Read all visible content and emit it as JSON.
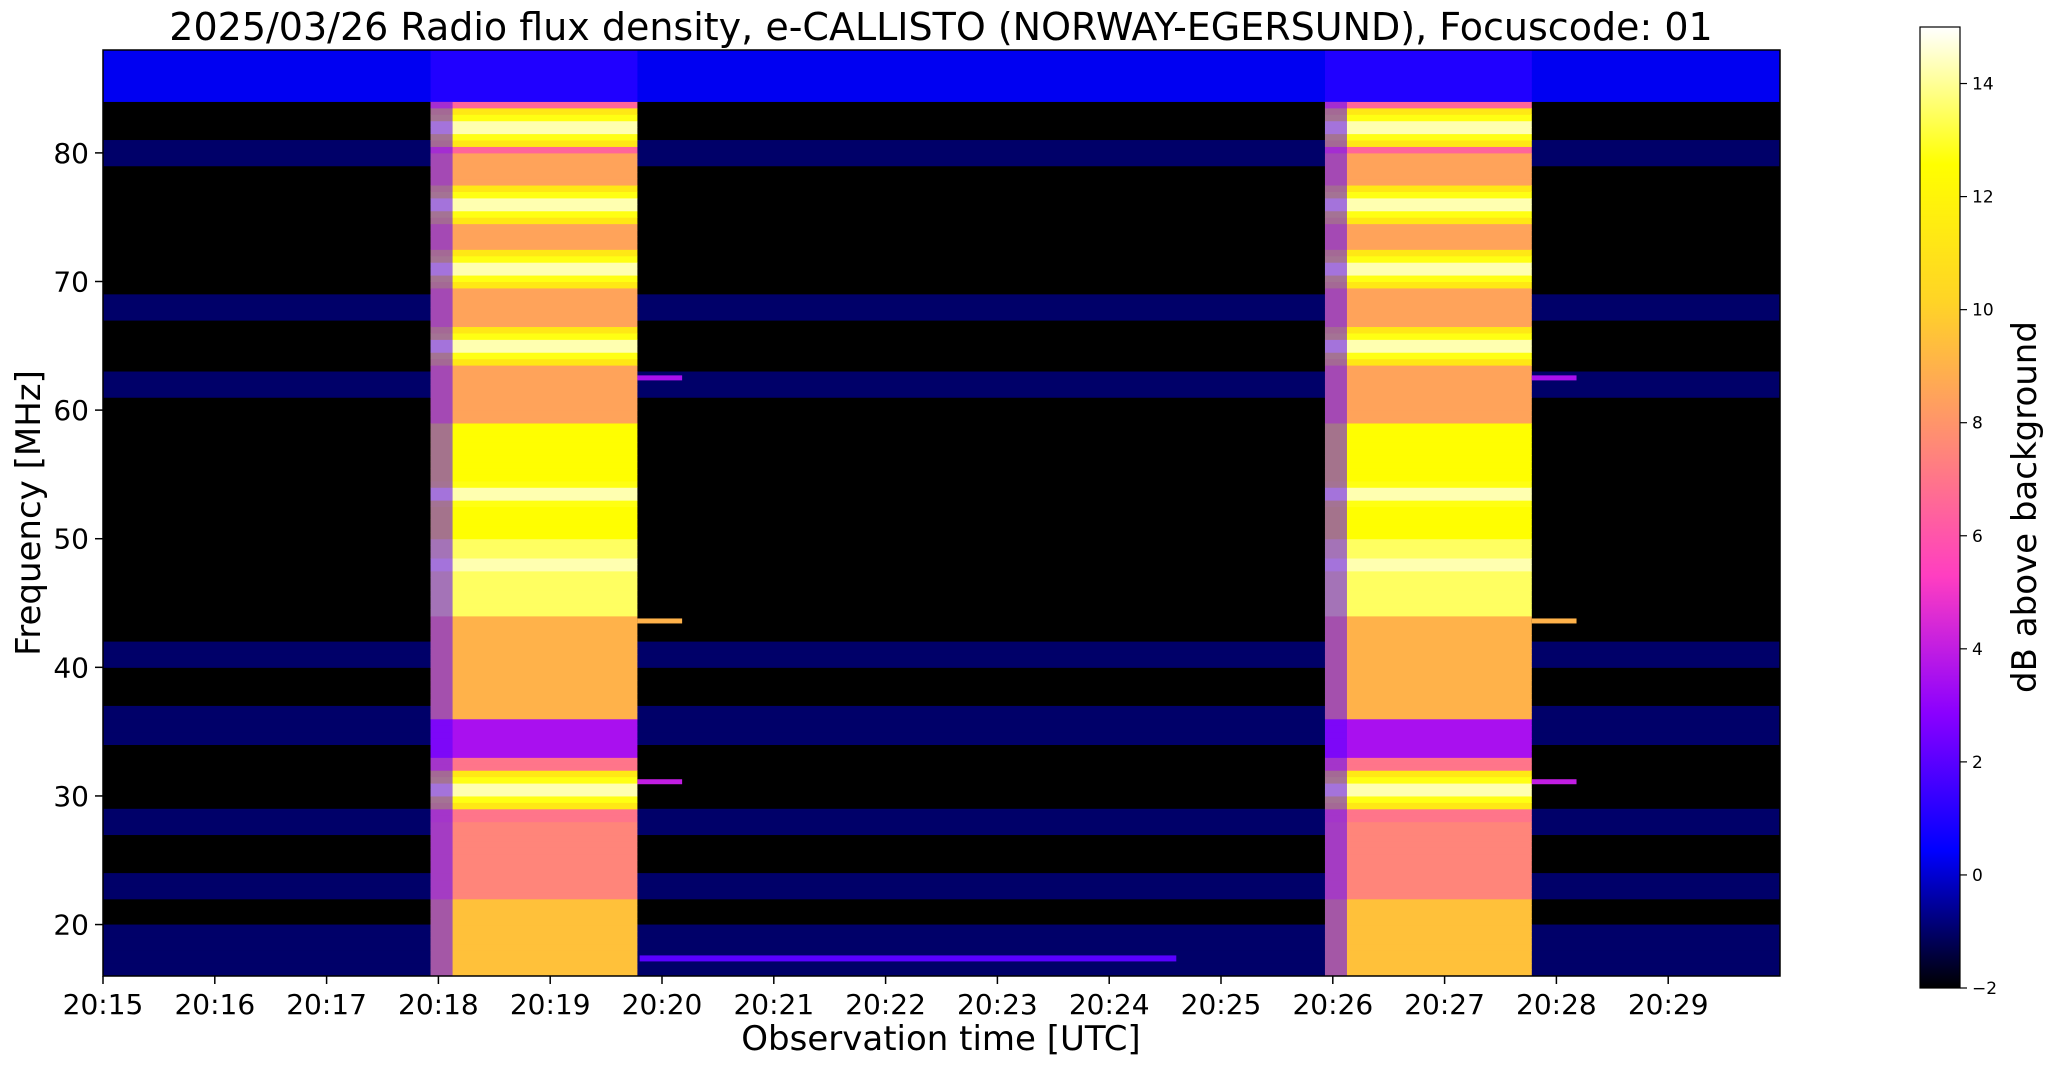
{
  "chart_data": {
    "type": "heatmap",
    "title": "2025/03/26  Radio flux density, e-CALLISTO (NORWAY-EGERSUND), Focuscode: 01",
    "xlabel": "Observation time [UTC]",
    "ylabel": "Frequency [MHz]",
    "x_ticks": [
      "20:15",
      "20:16",
      "20:17",
      "20:18",
      "20:19",
      "20:20",
      "20:21",
      "20:22",
      "20:23",
      "20:24",
      "20:25",
      "20:26",
      "20:27",
      "20:28",
      "20:29"
    ],
    "x_range_minutes": [
      0,
      15
    ],
    "y_ticks": [
      20,
      30,
      40,
      50,
      60,
      70,
      80
    ],
    "ylim": [
      16,
      88
    ],
    "colorbar": {
      "label": "dB above background",
      "range": [
        -2,
        15
      ],
      "ticks": [
        -2,
        0,
        2,
        4,
        6,
        8,
        10,
        12,
        14
      ],
      "colormap": "gnuplot2",
      "colors": [
        "#000000",
        "#0000ff",
        "#8a00ff",
        "#ff3ec1",
        "#ff8c73",
        "#ffd426",
        "#ffff00",
        "#ffffff"
      ]
    },
    "calibration_bursts_minutes": [
      [
        2.93,
        4.78
      ],
      [
        10.93,
        12.78
      ]
    ],
    "strong_bands_mhz": [
      82,
      76,
      71,
      65,
      53.5,
      48,
      30.5
    ],
    "background_bands_mhz": [
      86,
      80,
      68,
      62,
      41,
      36,
      35,
      28,
      23,
      19,
      17
    ]
  }
}
